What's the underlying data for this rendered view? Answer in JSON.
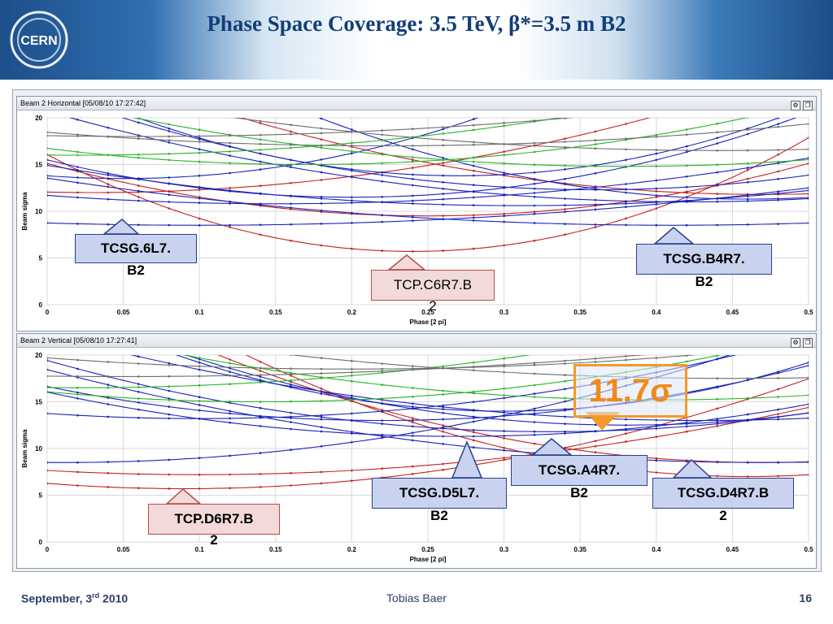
{
  "slide": {
    "title": "Phase Space Coverage: 3.5 TeV, β*=3.5 m B2",
    "logo_text": "CERN",
    "footer_date_pre": "September, 3",
    "footer_date_sup": "rd",
    "footer_date_post": " 2010",
    "footer_author": "Tobias Baer",
    "footer_page": "16",
    "sigma_label": "11.7σ"
  },
  "colors": {
    "blue": "#1a23b8",
    "red": "#c42020",
    "green": "#27b327",
    "gray": "#6d6d6d",
    "title": "#123e7a",
    "accent": "#f39a2a"
  },
  "chart_data": [
    {
      "type": "line",
      "panel_title": "Beam 2 Horizontal  [05/08/10 17:27:42]",
      "xlabel": "Phase [2 pi]",
      "ylabel": "Beam sigma",
      "xlim": [
        0,
        0.5
      ],
      "ylim": [
        0,
        20
      ],
      "xticks": [
        "0",
        "0.05",
        "0.1",
        "0.15",
        "0.2",
        "0.25",
        "0.3",
        "0.35",
        "0.4",
        "0.45",
        "0.5"
      ],
      "yticks": [
        "0",
        "5",
        "10",
        "15",
        "20"
      ],
      "grid": true,
      "series": [
        {
          "color": "red",
          "min_x": 0.24,
          "min_y": 5.7,
          "curv": 180
        },
        {
          "color": "red",
          "min_x": 0.25,
          "min_y": 9.5,
          "curv": 90
        },
        {
          "color": "red",
          "min_x": 0.03,
          "min_y": 12.0,
          "curv": 60
        },
        {
          "color": "red",
          "min_x": 0.47,
          "min_y": 11.8,
          "curv": 70
        },
        {
          "color": "blue",
          "min_x": 0.1,
          "min_y": 8.5,
          "curv": 25
        },
        {
          "color": "blue",
          "min_x": 0.41,
          "min_y": 8.5,
          "curv": 30
        },
        {
          "color": "blue",
          "min_x": 0.15,
          "min_y": 10.8,
          "curv": 40
        },
        {
          "color": "blue",
          "min_x": 0.31,
          "min_y": 10.6,
          "curv": 45
        },
        {
          "color": "blue",
          "min_x": 0.42,
          "min_y": 11.0,
          "curv": 55
        },
        {
          "color": "blue",
          "min_x": 0.05,
          "min_y": 13.5,
          "curv": 120
        },
        {
          "color": "blue",
          "min_x": 0.2,
          "min_y": 11.5,
          "curv": 100
        },
        {
          "color": "blue",
          "min_x": 0.36,
          "min_y": 12.3,
          "curv": 80
        },
        {
          "color": "blue",
          "min_x": 0.27,
          "min_y": 13.8,
          "curv": 140
        },
        {
          "color": "blue",
          "min_x": 0.46,
          "min_y": 11.3,
          "curv": 110
        },
        {
          "color": "green",
          "min_x": 0.17,
          "min_y": 15.0,
          "curv": 60
        },
        {
          "color": "green",
          "min_x": 0.38,
          "min_y": 14.8,
          "curv": 50
        },
        {
          "color": "green",
          "min_x": 0.02,
          "min_y": 16.0,
          "curv": 40
        },
        {
          "color": "gray",
          "min_x": 0.22,
          "min_y": 17.0,
          "curv": 30
        },
        {
          "color": "gray",
          "min_x": 0.44,
          "min_y": 16.5,
          "curv": 35
        },
        {
          "color": "gray",
          "min_x": 0.06,
          "min_y": 18.0,
          "curv": 25
        }
      ]
    },
    {
      "type": "line",
      "panel_title": "Beam 2 Vertical  [05/08/10 17:27:41]",
      "xlabel": "Phase [2 pi]",
      "ylabel": "Beam sigma",
      "xlim": [
        0,
        0.5
      ],
      "ylim": [
        0,
        20
      ],
      "xticks": [
        "0",
        "0.05",
        "0.1",
        "0.15",
        "0.2",
        "0.25",
        "0.3",
        "0.35",
        "0.4",
        "0.45",
        "0.5"
      ],
      "yticks": [
        "0",
        "5",
        "10",
        "15",
        "20"
      ],
      "grid": true,
      "series": [
        {
          "color": "red",
          "min_x": 0.09,
          "min_y": 5.7,
          "curv": 70
        },
        {
          "color": "red",
          "min_x": 0.1,
          "min_y": 7.2,
          "curv": 45
        },
        {
          "color": "red",
          "min_x": 0.47,
          "min_y": 8.5,
          "curv": 90
        },
        {
          "color": "red",
          "min_x": 0.46,
          "min_y": 7.0,
          "curv": 120
        },
        {
          "color": "blue",
          "min_x": 0.01,
          "min_y": 8.5,
          "curv": 60
        },
        {
          "color": "blue",
          "min_x": 0.47,
          "min_y": 8.5,
          "curv": 45
        },
        {
          "color": "blue",
          "min_x": 0.27,
          "min_y": 11.3,
          "curv": 65
        },
        {
          "color": "blue",
          "min_x": 0.33,
          "min_y": 11.8,
          "curv": 70
        },
        {
          "color": "blue",
          "min_x": 0.38,
          "min_y": 12.5,
          "curv": 90
        },
        {
          "color": "blue",
          "min_x": 0.22,
          "min_y": 13.0,
          "curv": 75
        },
        {
          "color": "blue",
          "min_x": 0.1,
          "min_y": 13.2,
          "curv": 55
        },
        {
          "color": "blue",
          "min_x": 0.43,
          "min_y": 13.0,
          "curv": 50
        },
        {
          "color": "blue",
          "min_x": 0.3,
          "min_y": 14.0,
          "curv": 130
        },
        {
          "color": "green",
          "min_x": 0.14,
          "min_y": 15.0,
          "curv": 55
        },
        {
          "color": "green",
          "min_x": 0.4,
          "min_y": 15.2,
          "curv": 50
        },
        {
          "color": "green",
          "min_x": 0.02,
          "min_y": 16.5,
          "curv": 40
        },
        {
          "color": "gray",
          "min_x": 0.2,
          "min_y": 18.5,
          "curv": 30
        },
        {
          "color": "gray",
          "min_x": 0.45,
          "min_y": 17.5,
          "curv": 30
        },
        {
          "color": "gray",
          "min_x": 0.05,
          "min_y": 17.7,
          "curv": 20
        }
      ]
    }
  ],
  "callouts": [
    {
      "text_line1": "TCSG.6L7.",
      "text_line2": "B2",
      "style": "blue"
    },
    {
      "text_line1": "TCP.C6R7.B",
      "text_line2": "2",
      "style": "red"
    },
    {
      "text_line1": "TCSG.B4R7.",
      "text_line2": "B2",
      "style": "blue"
    },
    {
      "text_line1": "TCSG.A4R7.",
      "text_line2": "B2",
      "style": "blue"
    },
    {
      "text_line1": "TCSG.D5L7.",
      "text_line2": "B2",
      "style": "blue"
    },
    {
      "text_line1": "TCSG.D4R7.B",
      "text_line2": "2",
      "style": "blue"
    },
    {
      "text_line1": "TCP.D6R7.B",
      "text_line2": "2",
      "style": "red"
    }
  ]
}
